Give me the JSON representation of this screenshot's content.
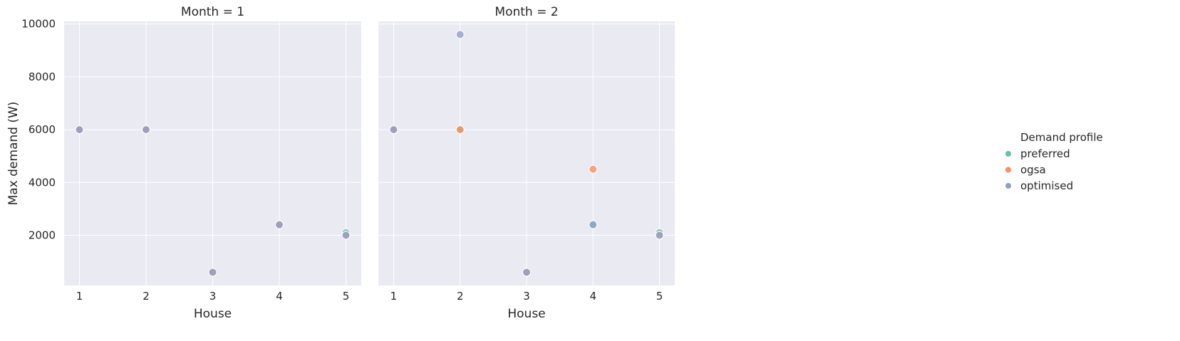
{
  "chart_data": {
    "type": "scatter",
    "xlabel": "House",
    "ylabel": "Max demand (W)",
    "x_ticks": [
      1,
      2,
      3,
      4,
      5
    ],
    "y_ticks": [
      2000,
      4000,
      6000,
      8000,
      10000
    ],
    "xlim": [
      0.77,
      5.23
    ],
    "ylim": [
      100,
      10100
    ],
    "grid": true,
    "legend": {
      "title": "Demand profile",
      "placement": "right",
      "entries": [
        {
          "label": "preferred",
          "color": "#66c2a5"
        },
        {
          "label": "ogsa",
          "color": "#fc8d62"
        },
        {
          "label": "optimised",
          "color": "#8da0cb"
        }
      ]
    },
    "facets": [
      {
        "title": "Month = 1",
        "series": [
          {
            "name": "preferred",
            "x": [
              1,
              2,
              3,
              4,
              5
            ],
            "y": [
              6000,
              6000,
              600,
              2400,
              2100
            ]
          },
          {
            "name": "ogsa",
            "x": [
              1,
              2,
              3,
              4,
              5
            ],
            "y": [
              6000,
              6000,
              600,
              2400,
              2000
            ]
          },
          {
            "name": "optimised",
            "x": [
              1,
              2,
              3,
              4,
              5
            ],
            "y": [
              6000,
              6000,
              600,
              2400,
              2000
            ]
          }
        ]
      },
      {
        "title": "Month = 2",
        "series": [
          {
            "name": "preferred",
            "x": [
              1,
              2,
              3,
              4,
              5
            ],
            "y": [
              6000,
              6000,
              600,
              2400,
              2100
            ]
          },
          {
            "name": "ogsa",
            "x": [
              1,
              2,
              3,
              4,
              5
            ],
            "y": [
              6000,
              6000,
              600,
              4500,
              2000
            ]
          },
          {
            "name": "optimised",
            "x": [
              1,
              2,
              3,
              4,
              5
            ],
            "y": [
              6000,
              9600,
              600,
              2400,
              2000
            ]
          }
        ]
      }
    ]
  }
}
